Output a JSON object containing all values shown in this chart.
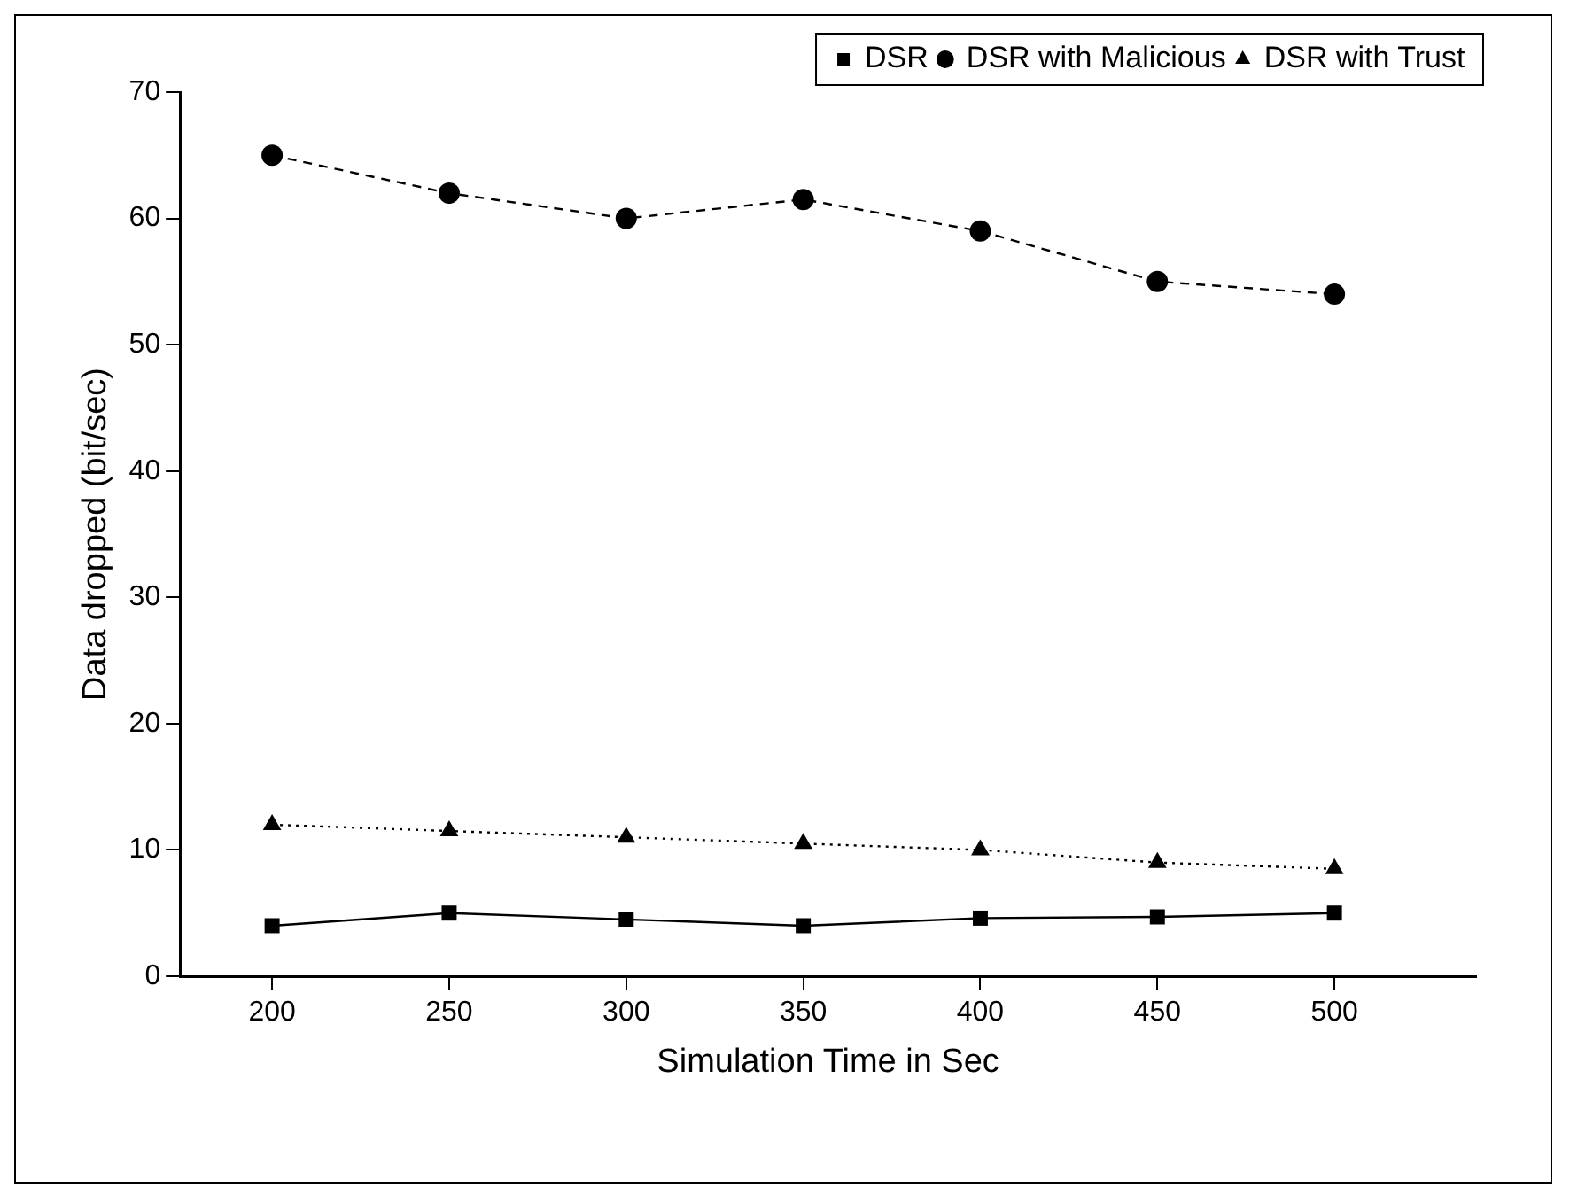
{
  "chart_data": {
    "type": "line",
    "xlabel": "Simulation Time in Sec",
    "ylabel": "Data dropped (bit/sec)",
    "x": [
      200,
      250,
      300,
      350,
      400,
      450,
      500
    ],
    "series": [
      {
        "name": "DSR",
        "color": "#000000",
        "values": [
          4,
          5,
          4.5,
          4,
          4.6,
          4.7,
          5
        ],
        "marker": "square",
        "line_style": "solid"
      },
      {
        "name": "DSR with Malicious",
        "color": "#000000",
        "values": [
          65,
          62,
          60,
          61.5,
          59,
          55,
          54
        ],
        "marker": "circle",
        "line_style": "dashed"
      },
      {
        "name": "DSR with Trust",
        "color": "#000000",
        "values": [
          12,
          11.5,
          11,
          10.5,
          10,
          9,
          8.5
        ],
        "marker": "triangle",
        "line_style": "dotted"
      }
    ],
    "xlim": [
      174,
      540
    ],
    "xticks": [
      200,
      250,
      300,
      350,
      400,
      450,
      500
    ],
    "ylim": [
      0,
      70
    ],
    "yticks": [
      0,
      10,
      20,
      30,
      40,
      50,
      60,
      70
    ],
    "grid": false,
    "legend": "top right"
  }
}
